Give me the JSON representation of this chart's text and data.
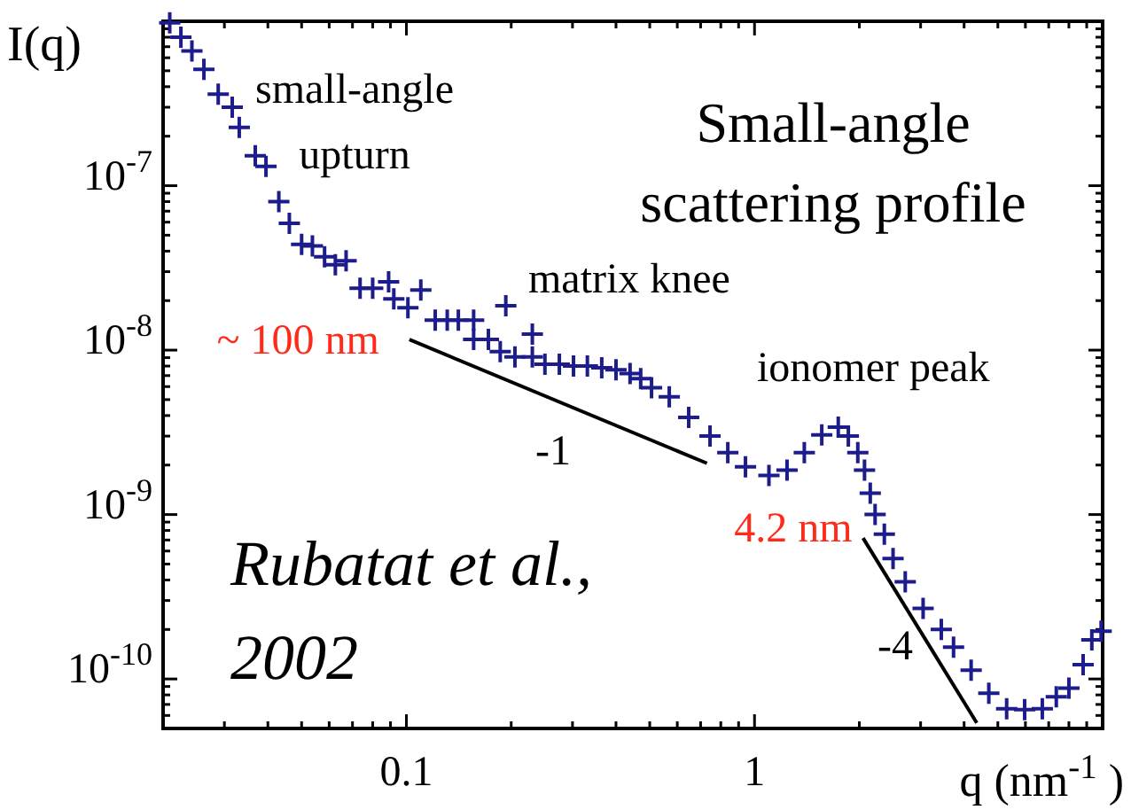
{
  "chart_data": {
    "type": "scatter",
    "title": "Small-angle scattering profile",
    "xlabel": "q (nm$^{-1}$ )",
    "ylabel": "I(q)",
    "log": "xy",
    "grid": false,
    "xlim": [
      0.02,
      10
    ],
    "ylim": [
      5e-11,
      1e-06
    ],
    "xticks": [
      {
        "value": 0.02,
        "label": null
      },
      {
        "value": 0.03,
        "label": null
      },
      {
        "value": 0.04,
        "label": null
      },
      {
        "value": 0.05,
        "label": null
      },
      {
        "value": 0.06,
        "label": null
      },
      {
        "value": 0.07,
        "label": null
      },
      {
        "value": 0.08,
        "label": null
      },
      {
        "value": 0.09,
        "label": null
      },
      0.1,
      {
        "value": 0.2,
        "label": null
      },
      {
        "value": 0.3,
        "label": null
      },
      {
        "value": 0.4,
        "label": null
      },
      {
        "value": 0.5,
        "label": null
      },
      {
        "value": 0.6,
        "label": null
      },
      {
        "value": 0.7,
        "label": null
      },
      {
        "value": 0.8,
        "label": null
      },
      {
        "value": 0.9,
        "label": null
      },
      1,
      {
        "value": 2,
        "label": null
      },
      {
        "value": 3,
        "label": null
      },
      {
        "value": 4,
        "label": null
      },
      {
        "value": 5,
        "label": null
      },
      {
        "value": 6,
        "label": null
      },
      {
        "value": 7,
        "label": null
      },
      {
        "value": 8,
        "label": null
      },
      {
        "value": 9,
        "label": null
      }
    ],
    "yticks": [
      {
        "value": 6e-11,
        "label": null
      },
      {
        "value": 7e-11,
        "label": null
      },
      {
        "value": 8e-11,
        "label": null
      },
      {
        "value": 9e-11,
        "label": null
      },
      {
        "value": 1e-10,
        "label": "10$^{-10}$"
      },
      {
        "value": 2e-10,
        "label": null
      },
      {
        "value": 3e-10,
        "label": null
      },
      {
        "value": 4e-10,
        "label": null
      },
      {
        "value": 5e-10,
        "label": null
      },
      {
        "value": 6e-10,
        "label": null
      },
      {
        "value": 7e-10,
        "label": null
      },
      {
        "value": 8e-10,
        "label": null
      },
      {
        "value": 9e-10,
        "label": null
      },
      {
        "value": 1e-09,
        "label": "10$^{-9}$"
      },
      {
        "value": 2e-09,
        "label": null
      },
      {
        "value": 3e-09,
        "label": null
      },
      {
        "value": 4e-09,
        "label": null
      },
      {
        "value": 5e-09,
        "label": null
      },
      {
        "value": 6e-09,
        "label": null
      },
      {
        "value": 7e-09,
        "label": null
      },
      {
        "value": 8e-09,
        "label": null
      },
      {
        "value": 9e-09,
        "label": null
      },
      {
        "value": 1e-08,
        "label": "10$^{-8}$"
      },
      {
        "value": 2e-08,
        "label": null
      },
      {
        "value": 3e-08,
        "label": null
      },
      {
        "value": 4e-08,
        "label": null
      },
      {
        "value": 5e-08,
        "label": null
      },
      {
        "value": 6e-08,
        "label": null
      },
      {
        "value": 7e-08,
        "label": null
      },
      {
        "value": 8e-08,
        "label": null
      },
      {
        "value": 9e-08,
        "label": null
      },
      {
        "value": 1e-07,
        "label": "10$^{-7}$"
      },
      {
        "value": 2e-07,
        "label": null
      },
      {
        "value": 3e-07,
        "label": null
      },
      {
        "value": 4e-07,
        "label": null
      },
      {
        "value": 5e-07,
        "label": null
      },
      {
        "value": 6e-07,
        "label": null
      },
      {
        "value": 7e-07,
        "label": null
      },
      {
        "value": 8e-07,
        "label": null
      },
      {
        "value": 9e-07,
        "label": null
      }
    ],
    "series": [
      {
        "marker": "cross",
        "color": "#1c1c8c",
        "x": [
          0.0209,
          0.0225,
          0.0242,
          0.0262,
          0.0288,
          0.0316,
          0.0331,
          0.0368,
          0.0395,
          0.043,
          0.0461,
          0.05,
          0.0537,
          0.0582,
          0.0625,
          0.0671,
          0.0736,
          0.08,
          0.0889,
          0.092,
          0.101,
          0.11,
          0.121,
          0.131,
          0.141,
          0.156,
          0.156,
          0.172,
          0.186,
          0.193,
          0.205,
          0.23,
          0.23,
          0.25,
          0.275,
          0.302,
          0.331,
          0.364,
          0.4,
          0.439,
          0.471,
          0.506,
          0.569,
          0.647,
          0.745,
          0.838,
          0.942,
          1.1,
          1.24,
          1.39,
          1.56,
          1.74,
          1.86,
          1.98,
          2.07,
          2.15,
          2.22,
          2.36,
          2.5,
          2.71,
          3.05,
          3.44,
          3.73,
          4.19,
          4.71,
          5.3,
          5.97,
          6.71,
          7.36,
          8.0,
          8.79,
          9.31,
          9.9
        ],
        "values": [
          9.8e-07,
          8e-07,
          6.6e-07,
          5.1e-07,
          3.6e-07,
          3e-07,
          2.26e-07,
          1.52e-07,
          1.31e-07,
          8e-08,
          5.9e-08,
          4.4e-08,
          4.3e-08,
          3.7e-08,
          3.3e-08,
          3.5e-08,
          2.38e-08,
          2.38e-08,
          2.6e-08,
          2.05e-08,
          1.81e-08,
          2.32e-08,
          1.52e-08,
          1.52e-08,
          1.52e-08,
          1.52e-08,
          1.16e-08,
          1.16e-08,
          9.8e-09,
          1.86e-08,
          9.1e-09,
          1.25e-08,
          9.1e-09,
          8.2e-09,
          8.2e-09,
          8e-09,
          8e-09,
          7.8e-09,
          7.6e-09,
          7.2e-09,
          6.7e-09,
          5.9e-09,
          5.2e-09,
          3.9e-09,
          3e-09,
          2.38e-09,
          1.95e-09,
          1.73e-09,
          1.86e-09,
          2.38e-09,
          3.05e-09,
          3.4e-09,
          3e-09,
          2.38e-09,
          1.86e-09,
          1.35e-09,
          1e-09,
          7.6e-10,
          5.4e-10,
          3.9e-10,
          2.69e-10,
          2e-10,
          1.56e-10,
          1.13e-10,
          8.2e-11,
          6.6e-11,
          6.5e-11,
          6.6e-11,
          7.8e-11,
          8.8e-11,
          1.22e-10,
          1.73e-10,
          1.95e-10
        ]
      },
      {
        "type": "line",
        "color": "#000000",
        "x": [
          0.102,
          0.73
        ],
        "values": [
          1.16e-08,
          2.05e-09
        ]
      },
      {
        "type": "line",
        "color": "#000000",
        "x": [
          2.05,
          4.35
        ],
        "values": [
          7.2e-10,
          5.4e-11
        ]
      }
    ],
    "annotations": [
      "small-angle upturn",
      "Rubatat et al., 2002",
      "matrix knee",
      "ionomer peak",
      "-1",
      "-4",
      {
        "text": "~ 100 nm",
        "x": 0.102,
        "y": 1.16e-08
      },
      {
        "text": "4.2 nm",
        "x": 2.05,
        "y": 7.2e-10
      }
    ]
  }
}
